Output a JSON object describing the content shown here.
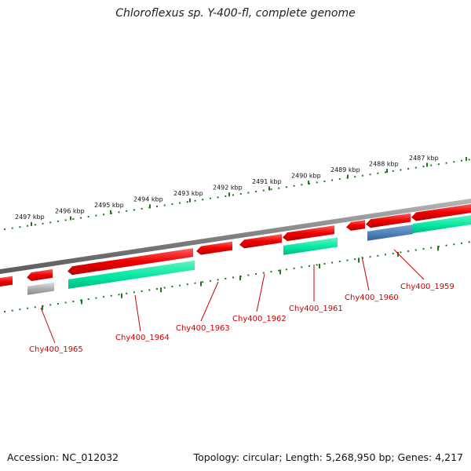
{
  "title": "Chloroflexus sp. Y-400-fl, complete genome",
  "footer": {
    "accession": "Accession: NC_012032",
    "summary": "Topology: circular; Length: 5,268,950 bp; Genes: 4,217"
  },
  "scale_labels": [
    "2497 kbp",
    "2496 kbp",
    "2495 kbp",
    "2494 kbp",
    "2493 kbp",
    "2492 kbp",
    "2491 kbp",
    "2490 kbp",
    "2489 kbp",
    "2488 kbp",
    "2487 kbp"
  ],
  "gene_labels": [
    "Chy400_1965",
    "Chy400_1964",
    "Chy400_1963",
    "Chy400_1962",
    "Chy400_1961",
    "Chy400_1960",
    "Chy400_1959"
  ],
  "colors": {
    "backbone": "#808080",
    "forward_cds": "#ee0000",
    "reverse_feature": "#00e5a0",
    "grey_feature": "#b0b0b0",
    "blue_feature": "#4a7fb5",
    "tick": "#1a7a1a",
    "label": "#cc0000"
  }
}
